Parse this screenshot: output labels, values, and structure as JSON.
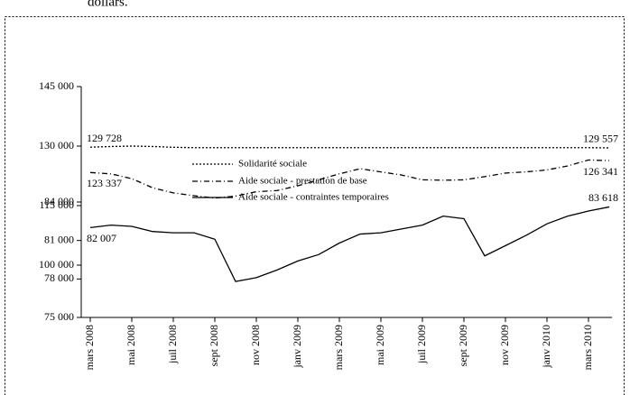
{
  "caption": "dollars.",
  "chart_data": [
    {
      "type": "line",
      "ylim": [
        100000,
        145000
      ],
      "yticks": [
        {
          "value": 100000,
          "label": "100 000"
        },
        {
          "value": 115000,
          "label": "115 000"
        },
        {
          "value": 130000,
          "label": "130 000"
        },
        {
          "value": 145000,
          "label": "145 000"
        }
      ],
      "series": [
        {
          "name": "Solidarité sociale",
          "color": "#000000",
          "dash": "2,2",
          "values": [
            129728,
            129900,
            130000,
            129900,
            129700,
            129600,
            129600,
            129600,
            129600,
            129600,
            129600,
            129600,
            129600,
            129600,
            129600,
            129600,
            129600,
            129600,
            129600,
            129600,
            129600,
            129600,
            129600,
            129600,
            129600,
            129557
          ],
          "value_labels": [
            "129 728",
            null,
            null,
            null,
            null,
            null,
            null,
            null,
            null,
            null,
            null,
            null,
            null,
            null,
            null,
            null,
            null,
            null,
            null,
            null,
            null,
            null,
            null,
            null,
            null,
            "129 557"
          ]
        },
        {
          "name": "Aide sociale - prestation de base",
          "color": "#000000",
          "dash": "6,3,1,3",
          "values": [
            123337,
            123000,
            121800,
            119500,
            118200,
            117500,
            116900,
            117400,
            118500,
            118800,
            120000,
            121500,
            123000,
            124300,
            123500,
            122700,
            121500,
            121400,
            121500,
            122300,
            123200,
            123500,
            124000,
            125000,
            126500,
            126341
          ],
          "value_labels": [
            "123 337",
            null,
            null,
            null,
            null,
            null,
            null,
            null,
            null,
            null,
            null,
            null,
            null,
            null,
            null,
            null,
            null,
            null,
            null,
            null,
            null,
            null,
            null,
            null,
            null,
            "126 341"
          ]
        }
      ]
    },
    {
      "type": "line",
      "categories": [
        "mars 2008",
        null,
        "mai 2008",
        null,
        "juil 2008",
        null,
        "sept 2008",
        null,
        "nov 2008",
        null,
        "janv 2009",
        null,
        "mars 2009",
        null,
        "mai 2009",
        null,
        "juil 2009",
        null,
        "sept 2009",
        null,
        "nov 2009",
        null,
        "janv 2010",
        null,
        "mars 2010",
        null
      ],
      "ylim": [
        75000,
        84000
      ],
      "yticks": [
        {
          "value": 75000,
          "label": "75 000"
        },
        {
          "value": 78000,
          "label": "78 000"
        },
        {
          "value": 81000,
          "label": "81 000"
        },
        {
          "value": 84000,
          "label": "84 000"
        }
      ],
      "series": [
        {
          "name": "Aide sociale - contraintes temporaires",
          "color": "#000000",
          "dash": "none",
          "values": [
            82007,
            82200,
            82100,
            81700,
            81600,
            81600,
            81100,
            77800,
            78100,
            78700,
            79400,
            79900,
            80800,
            81500,
            81600,
            81900,
            82200,
            82900,
            82700,
            79800,
            80600,
            81400,
            82300,
            82900,
            83300,
            83618
          ],
          "value_labels": [
            "82 007",
            null,
            null,
            null,
            null,
            null,
            null,
            null,
            null,
            null,
            null,
            null,
            null,
            null,
            null,
            null,
            null,
            null,
            null,
            null,
            null,
            null,
            null,
            null,
            null,
            "83 618"
          ]
        }
      ]
    }
  ]
}
